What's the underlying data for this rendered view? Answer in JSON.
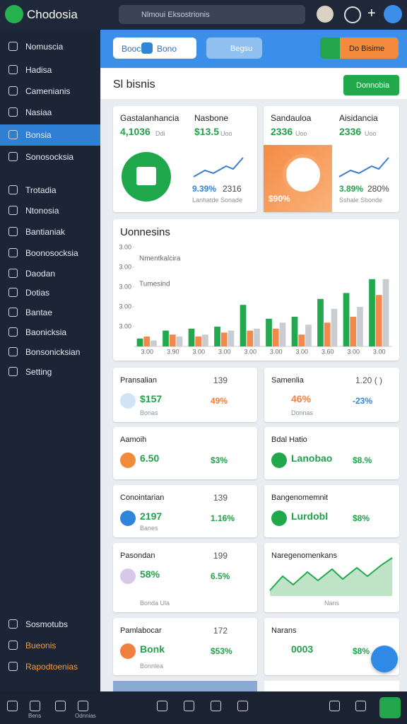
{
  "topbar": {
    "logo": "Chodosia",
    "search": "Nlmoui Eksostrionis"
  },
  "sidebar": {
    "items": [
      "Nomuscia",
      "Hadisa",
      "Camenianis",
      "Nasiaa",
      "Bonsia",
      "Sonosocksia",
      "Trotadia",
      "Ntonosia",
      "Bantianiak",
      "Boonosocksia",
      "Daodan",
      "Dotias",
      "Bantae",
      "Baonicksia",
      "Bonsonicksian",
      "Setting"
    ],
    "footer": [
      "Sosmotubs",
      "Bueonis",
      "Rapodtoenias"
    ]
  },
  "toolbar": {
    "tab1": "Booc",
    "tab1b": "Bono",
    "tab2": "Begsu",
    "action": "Do Bisime"
  },
  "section": {
    "title": "Sl bisnis",
    "button": "Donnobia"
  },
  "kpi": [
    {
      "title": "Gastalanhancia",
      "value": "4,1036",
      "sub": "Ddi"
    },
    {
      "title": "Nasbone",
      "value": "$13.5",
      "sub": "Uoo",
      "stat1": "9.39%",
      "stat2": "2316",
      "note": "Lanhatde Sonade"
    },
    {
      "title": "Sandauloa",
      "value": "2336",
      "sub": "Uoo",
      "badge": "$90%"
    },
    {
      "title": "Aisidancia",
      "value": "2336",
      "sub": "Uoo",
      "stat1": "3.89%",
      "stat2": "280%",
      "note": "Sshale Sbonde"
    }
  ],
  "chart_data": {
    "type": "bar",
    "title": "Uonnesins",
    "annotations": [
      "Nmentkalcira",
      "Tumesind"
    ],
    "categories": [
      "3.00",
      "3.90",
      "3.00",
      "3.00",
      "3.00",
      "3.00",
      "3.00",
      "3.60",
      "3.00",
      "3.00"
    ],
    "series": [
      {
        "name": null,
        "color": "#22a94f",
        "values": [
          0.4,
          0.8,
          0.9,
          1.0,
          2.1,
          1.4,
          1.5,
          2.4,
          2.7,
          3.4
        ]
      },
      {
        "name": null,
        "color": "#f4874b",
        "values": [
          0.5,
          0.6,
          0.5,
          0.7,
          0.8,
          0.9,
          0.6,
          1.2,
          1.5,
          2.6
        ]
      },
      {
        "name": null,
        "color": "#c9cdd2",
        "values": [
          0.3,
          0.5,
          0.6,
          0.8,
          0.9,
          1.2,
          1.1,
          1.9,
          2.0,
          3.4
        ]
      }
    ],
    "ylim": [
      0,
      5
    ],
    "yticks": [
      {
        "value": 1,
        "label": "3.00"
      },
      {
        "value": 2,
        "label": "3.00"
      },
      {
        "value": 3,
        "label": "3.00"
      },
      {
        "value": 4,
        "label": "3.00"
      },
      {
        "value": 5,
        "label": "3.00"
      }
    ]
  },
  "cards": [
    {
      "title": "Pransalian",
      "corner": "139",
      "value": "$157",
      "change": "49%",
      "sub": "Bonas"
    },
    {
      "title": "Samenlia",
      "corner": "1.20 ( )",
      "value": "46%",
      "change": "-23%",
      "sub": "Donnas"
    },
    {
      "title": "Aamoih",
      "value": "6.50",
      "change": "$3%"
    },
    {
      "title": "Bdal Hatio",
      "value": "Lanobao",
      "change": "$8.%"
    },
    {
      "title": "Conointarian",
      "corner": "139",
      "value": "2197",
      "change": "1.16%",
      "sub": "Banes"
    },
    {
      "title": "Bangenomemnit",
      "value": "Lurdobl",
      "change": "$8%"
    },
    {
      "title": "Pasondan",
      "corner": "199",
      "value": "58%",
      "change": "6.5%",
      "sub": "Bonda Ula"
    },
    {
      "title": "Naregenomenkans",
      "sub": "Nans"
    },
    {
      "title": "Pamlabocar",
      "corner": "172",
      "value": "Bonk",
      "change": "$53%",
      "sub": "Bonnlea"
    },
    {
      "title": "Narans",
      "value": "0003",
      "change": "$8%"
    }
  ],
  "bottomnav": [
    "Bens",
    "Odnnias"
  ]
}
